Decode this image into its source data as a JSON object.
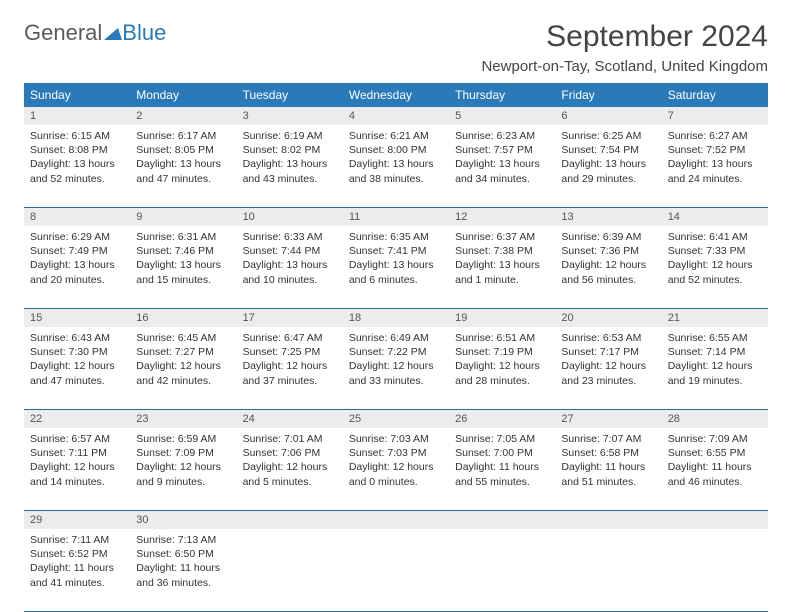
{
  "logo": {
    "text1": "General",
    "text2": "Blue",
    "color1": "#5a5a5a",
    "color2": "#2a7ab9"
  },
  "title": "September 2024",
  "location": "Newport-on-Tay, Scotland, United Kingdom",
  "style": {
    "header_bg": "#2a7ab9",
    "header_text": "#ffffff",
    "daynum_bg": "#ececec",
    "week_border": "#2a6b99",
    "title_fontsize": 30,
    "header_fontsize": 12,
    "cell_fontsize": 10.5
  },
  "day_headers": [
    "Sunday",
    "Monday",
    "Tuesday",
    "Wednesday",
    "Thursday",
    "Friday",
    "Saturday"
  ],
  "weeks": [
    [
      {
        "num": "1",
        "sunrise": "Sunrise: 6:15 AM",
        "sunset": "Sunset: 8:08 PM",
        "daylight": "Daylight: 13 hours and 52 minutes."
      },
      {
        "num": "2",
        "sunrise": "Sunrise: 6:17 AM",
        "sunset": "Sunset: 8:05 PM",
        "daylight": "Daylight: 13 hours and 47 minutes."
      },
      {
        "num": "3",
        "sunrise": "Sunrise: 6:19 AM",
        "sunset": "Sunset: 8:02 PM",
        "daylight": "Daylight: 13 hours and 43 minutes."
      },
      {
        "num": "4",
        "sunrise": "Sunrise: 6:21 AM",
        "sunset": "Sunset: 8:00 PM",
        "daylight": "Daylight: 13 hours and 38 minutes."
      },
      {
        "num": "5",
        "sunrise": "Sunrise: 6:23 AM",
        "sunset": "Sunset: 7:57 PM",
        "daylight": "Daylight: 13 hours and 34 minutes."
      },
      {
        "num": "6",
        "sunrise": "Sunrise: 6:25 AM",
        "sunset": "Sunset: 7:54 PM",
        "daylight": "Daylight: 13 hours and 29 minutes."
      },
      {
        "num": "7",
        "sunrise": "Sunrise: 6:27 AM",
        "sunset": "Sunset: 7:52 PM",
        "daylight": "Daylight: 13 hours and 24 minutes."
      }
    ],
    [
      {
        "num": "8",
        "sunrise": "Sunrise: 6:29 AM",
        "sunset": "Sunset: 7:49 PM",
        "daylight": "Daylight: 13 hours and 20 minutes."
      },
      {
        "num": "9",
        "sunrise": "Sunrise: 6:31 AM",
        "sunset": "Sunset: 7:46 PM",
        "daylight": "Daylight: 13 hours and 15 minutes."
      },
      {
        "num": "10",
        "sunrise": "Sunrise: 6:33 AM",
        "sunset": "Sunset: 7:44 PM",
        "daylight": "Daylight: 13 hours and 10 minutes."
      },
      {
        "num": "11",
        "sunrise": "Sunrise: 6:35 AM",
        "sunset": "Sunset: 7:41 PM",
        "daylight": "Daylight: 13 hours and 6 minutes."
      },
      {
        "num": "12",
        "sunrise": "Sunrise: 6:37 AM",
        "sunset": "Sunset: 7:38 PM",
        "daylight": "Daylight: 13 hours and 1 minute."
      },
      {
        "num": "13",
        "sunrise": "Sunrise: 6:39 AM",
        "sunset": "Sunset: 7:36 PM",
        "daylight": "Daylight: 12 hours and 56 minutes."
      },
      {
        "num": "14",
        "sunrise": "Sunrise: 6:41 AM",
        "sunset": "Sunset: 7:33 PM",
        "daylight": "Daylight: 12 hours and 52 minutes."
      }
    ],
    [
      {
        "num": "15",
        "sunrise": "Sunrise: 6:43 AM",
        "sunset": "Sunset: 7:30 PM",
        "daylight": "Daylight: 12 hours and 47 minutes."
      },
      {
        "num": "16",
        "sunrise": "Sunrise: 6:45 AM",
        "sunset": "Sunset: 7:27 PM",
        "daylight": "Daylight: 12 hours and 42 minutes."
      },
      {
        "num": "17",
        "sunrise": "Sunrise: 6:47 AM",
        "sunset": "Sunset: 7:25 PM",
        "daylight": "Daylight: 12 hours and 37 minutes."
      },
      {
        "num": "18",
        "sunrise": "Sunrise: 6:49 AM",
        "sunset": "Sunset: 7:22 PM",
        "daylight": "Daylight: 12 hours and 33 minutes."
      },
      {
        "num": "19",
        "sunrise": "Sunrise: 6:51 AM",
        "sunset": "Sunset: 7:19 PM",
        "daylight": "Daylight: 12 hours and 28 minutes."
      },
      {
        "num": "20",
        "sunrise": "Sunrise: 6:53 AM",
        "sunset": "Sunset: 7:17 PM",
        "daylight": "Daylight: 12 hours and 23 minutes."
      },
      {
        "num": "21",
        "sunrise": "Sunrise: 6:55 AM",
        "sunset": "Sunset: 7:14 PM",
        "daylight": "Daylight: 12 hours and 19 minutes."
      }
    ],
    [
      {
        "num": "22",
        "sunrise": "Sunrise: 6:57 AM",
        "sunset": "Sunset: 7:11 PM",
        "daylight": "Daylight: 12 hours and 14 minutes."
      },
      {
        "num": "23",
        "sunrise": "Sunrise: 6:59 AM",
        "sunset": "Sunset: 7:09 PM",
        "daylight": "Daylight: 12 hours and 9 minutes."
      },
      {
        "num": "24",
        "sunrise": "Sunrise: 7:01 AM",
        "sunset": "Sunset: 7:06 PM",
        "daylight": "Daylight: 12 hours and 5 minutes."
      },
      {
        "num": "25",
        "sunrise": "Sunrise: 7:03 AM",
        "sunset": "Sunset: 7:03 PM",
        "daylight": "Daylight: 12 hours and 0 minutes."
      },
      {
        "num": "26",
        "sunrise": "Sunrise: 7:05 AM",
        "sunset": "Sunset: 7:00 PM",
        "daylight": "Daylight: 11 hours and 55 minutes."
      },
      {
        "num": "27",
        "sunrise": "Sunrise: 7:07 AM",
        "sunset": "Sunset: 6:58 PM",
        "daylight": "Daylight: 11 hours and 51 minutes."
      },
      {
        "num": "28",
        "sunrise": "Sunrise: 7:09 AM",
        "sunset": "Sunset: 6:55 PM",
        "daylight": "Daylight: 11 hours and 46 minutes."
      }
    ],
    [
      {
        "num": "29",
        "sunrise": "Sunrise: 7:11 AM",
        "sunset": "Sunset: 6:52 PM",
        "daylight": "Daylight: 11 hours and 41 minutes."
      },
      {
        "num": "30",
        "sunrise": "Sunrise: 7:13 AM",
        "sunset": "Sunset: 6:50 PM",
        "daylight": "Daylight: 11 hours and 36 minutes."
      },
      null,
      null,
      null,
      null,
      null
    ]
  ]
}
